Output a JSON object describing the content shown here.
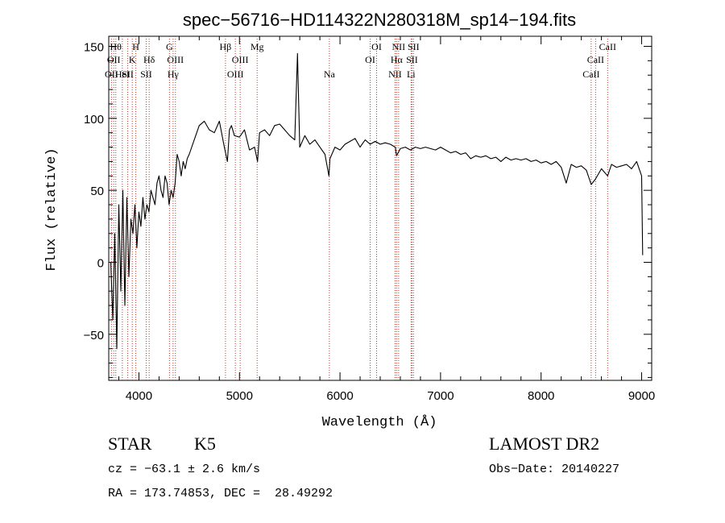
{
  "chart_data": {
    "type": "line",
    "title": "spec−56716−HD114322N280318M_sp14−194.fits",
    "xlabel": "Wavelength (Å)",
    "ylabel": "Flux (relative)",
    "xlim": [
      3700,
      9100
    ],
    "ylim": [
      -82,
      157
    ],
    "xticks": [
      4000,
      5000,
      6000,
      7000,
      8000,
      9000
    ],
    "xtick_labels": [
      "4000",
      "5000",
      "6000",
      "7000",
      "8000",
      "9000"
    ],
    "yticks": [
      -50,
      0,
      50,
      100,
      150
    ],
    "ytick_labels": [
      "−50",
      "0",
      "50",
      "100",
      "150"
    ],
    "grid": false,
    "line_color": "#000000",
    "marker_color": "#c03a2b",
    "series": [
      {
        "x": [
          3720,
          3740,
          3760,
          3780,
          3800,
          3820,
          3840,
          3860,
          3880,
          3900,
          3920,
          3940,
          3960,
          3980,
          4000,
          4020,
          4040,
          4060,
          4080,
          4100,
          4120,
          4140,
          4160,
          4180,
          4200,
          4220,
          4240,
          4260,
          4280,
          4300,
          4320,
          4340,
          4360,
          4380,
          4400,
          4420,
          4440,
          4460,
          4480,
          4500,
          4550,
          4600,
          4650,
          4700,
          4750,
          4800,
          4850,
          4880,
          4900,
          4920,
          4950,
          5000,
          5050,
          5100,
          5150,
          5180,
          5200,
          5250,
          5300,
          5350,
          5400,
          5450,
          5500,
          5550,
          5577,
          5600,
          5650,
          5700,
          5750,
          5800,
          5850,
          5890,
          5900,
          5950,
          6000,
          6050,
          6100,
          6150,
          6200,
          6250,
          6300,
          6350,
          6400,
          6450,
          6500,
          6550,
          6563,
          6600,
          6650,
          6700,
          6750,
          6800,
          6850,
          6900,
          6950,
          7000,
          7050,
          7100,
          7150,
          7200,
          7250,
          7300,
          7350,
          7400,
          7450,
          7500,
          7550,
          7600,
          7650,
          7700,
          7750,
          7800,
          7850,
          7900,
          7950,
          8000,
          8050,
          8100,
          8150,
          8200,
          8250,
          8300,
          8350,
          8400,
          8450,
          8498,
          8542,
          8600,
          8662,
          8700,
          8750,
          8800,
          8850,
          8900,
          8950,
          9000,
          9010
        ],
        "y": [
          0,
          -40,
          20,
          -60,
          40,
          -20,
          50,
          -30,
          45,
          -10,
          30,
          20,
          40,
          10,
          35,
          25,
          45,
          30,
          40,
          35,
          50,
          45,
          40,
          55,
          60,
          50,
          45,
          60,
          55,
          40,
          50,
          45,
          55,
          75,
          70,
          60,
          70,
          65,
          72,
          75,
          85,
          95,
          98,
          92,
          90,
          98,
          80,
          70,
          92,
          95,
          88,
          87,
          92,
          78,
          80,
          70,
          90,
          92,
          88,
          95,
          96,
          92,
          88,
          85,
          145,
          80,
          88,
          82,
          85,
          80,
          75,
          60,
          72,
          80,
          78,
          82,
          84,
          86,
          80,
          85,
          82,
          84,
          82,
          83,
          82,
          80,
          74,
          79,
          80,
          78,
          80,
          79,
          80,
          79,
          78,
          80,
          78,
          76,
          77,
          75,
          76,
          72,
          74,
          73,
          74,
          72,
          73,
          70,
          73,
          71,
          72,
          71,
          72,
          70,
          71,
          69,
          70,
          68,
          70,
          66,
          55,
          68,
          66,
          67,
          64,
          54,
          58,
          65,
          60,
          68,
          66,
          67,
          68,
          65,
          70,
          60,
          5
        ]
      }
    ],
    "line_markers": [
      {
        "x": 3727,
        "row": 2,
        "label": "OII"
      },
      {
        "x": 3750,
        "row": 1,
        "label": "OII"
      },
      {
        "x": 3770,
        "row": 0,
        "label": "Hθ"
      },
      {
        "x": 3835,
        "row": 2,
        "label": "HeI"
      },
      {
        "x": 3889,
        "row": 2,
        "label": "SII"
      },
      {
        "x": 3934,
        "row": 1,
        "label": "K"
      },
      {
        "x": 3969,
        "row": 0,
        "label": "H"
      },
      {
        "x": 4072,
        "row": 2,
        "label": "SII"
      },
      {
        "x": 4102,
        "row": 1,
        "label": "Hδ"
      },
      {
        "x": 4304,
        "row": 0,
        "label": "G"
      },
      {
        "x": 4340,
        "row": 2,
        "label": "Hγ"
      },
      {
        "x": 4363,
        "row": 1,
        "label": "OIII"
      },
      {
        "x": 4861,
        "row": 0,
        "label": "Hβ"
      },
      {
        "x": 4959,
        "row": 2,
        "label": "OIII"
      },
      {
        "x": 5007,
        "row": 1,
        "label": "OIII"
      },
      {
        "x": 5176,
        "row": 0,
        "label": "Mg"
      },
      {
        "x": 5894,
        "row": 2,
        "label": "Na"
      },
      {
        "x": 6300,
        "row": 1,
        "label": "OI"
      },
      {
        "x": 6364,
        "row": 0,
        "label": "OI"
      },
      {
        "x": 6548,
        "row": 2,
        "label": "NII"
      },
      {
        "x": 6563,
        "row": 1,
        "label": "Hα"
      },
      {
        "x": 6583,
        "row": 0,
        "label": "NII"
      },
      {
        "x": 6707,
        "row": 2,
        "label": "Li"
      },
      {
        "x": 6716,
        "row": 1,
        "label": "SII"
      },
      {
        "x": 6731,
        "row": 0,
        "label": "SII"
      },
      {
        "x": 8498,
        "row": 2,
        "label": "CaII"
      },
      {
        "x": 8542,
        "row": 1,
        "label": "CaII"
      },
      {
        "x": 8662,
        "row": 0,
        "label": "CaII"
      }
    ]
  },
  "info": {
    "object_class": "STAR",
    "subclass": "K5",
    "survey": "LAMOST DR2",
    "redshift_text": "cz = −63.1 ± 2.6 km/s",
    "obs_date": "Obs−Date: 20140227",
    "coords": "RA = 173.74853, DEC =  28.49292"
  }
}
